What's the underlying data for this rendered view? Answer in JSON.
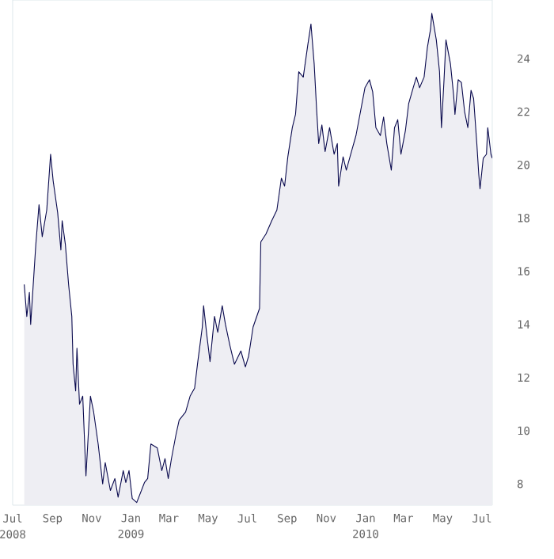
{
  "chart_data": {
    "type": "area",
    "xlim": [
      "2008-07-01",
      "2010-07-17"
    ],
    "ylim": [
      7.2,
      26.2
    ],
    "yticks": [
      8,
      10,
      12,
      14,
      16,
      18,
      20,
      22,
      24
    ],
    "xticks": [
      {
        "value": "2008-07-01",
        "label": "Jul 2008"
      },
      {
        "value": "2008-09-01",
        "label": "Sep"
      },
      {
        "value": "2008-11-01",
        "label": "Nov"
      },
      {
        "value": "2009-01-01",
        "label": "Jan 2009"
      },
      {
        "value": "2009-03-01",
        "label": "Mar"
      },
      {
        "value": "2009-05-01",
        "label": "May"
      },
      {
        "value": "2009-07-01",
        "label": "Jul"
      },
      {
        "value": "2009-09-01",
        "label": "Sep"
      },
      {
        "value": "2009-11-01",
        "label": "Nov"
      },
      {
        "value": "2010-01-01",
        "label": "Jan 2010"
      },
      {
        "value": "2010-03-01",
        "label": "Mar"
      },
      {
        "value": "2010-05-01",
        "label": "May"
      },
      {
        "value": "2010-07-01",
        "label": "Jul"
      }
    ],
    "grid": false,
    "x": [
      "2008-07-19",
      "2008-07-23",
      "2008-07-27",
      "2008-07-29",
      "2008-08-06",
      "2008-08-11",
      "2008-08-16",
      "2008-08-23",
      "2008-08-29",
      "2008-09-02",
      "2008-09-09",
      "2008-09-14",
      "2008-09-16",
      "2008-09-21",
      "2008-09-26",
      "2008-10-01",
      "2008-10-03",
      "2008-10-07",
      "2008-10-09",
      "2008-10-13",
      "2008-10-18",
      "2008-10-23",
      "2008-10-30",
      "2008-11-04",
      "2008-11-11",
      "2008-11-18",
      "2008-11-22",
      "2008-11-30",
      "2008-12-07",
      "2008-12-12",
      "2008-12-20",
      "2008-12-24",
      "2008-12-29",
      "2009-01-03",
      "2009-01-10",
      "2009-01-22",
      "2009-01-27",
      "2009-02-01",
      "2009-02-11",
      "2009-02-18",
      "2009-02-23",
      "2009-02-28",
      "2009-03-05",
      "2009-03-12",
      "2009-03-17",
      "2009-03-27",
      "2009-04-03",
      "2009-04-10",
      "2009-04-15",
      "2009-04-22",
      "2009-04-24",
      "2009-04-29",
      "2009-05-04",
      "2009-05-11",
      "2009-05-16",
      "2009-05-23",
      "2009-05-28",
      "2009-06-04",
      "2009-06-11",
      "2009-06-21",
      "2009-06-28",
      "2009-07-03",
      "2009-07-10",
      "2009-07-20",
      "2009-07-22",
      "2009-07-30",
      "2009-08-08",
      "2009-08-16",
      "2009-08-23",
      "2009-08-28",
      "2009-09-02",
      "2009-09-09",
      "2009-09-14",
      "2009-09-19",
      "2009-09-26",
      "2009-10-03",
      "2009-10-08",
      "2009-10-13",
      "2009-10-17",
      "2009-10-20",
      "2009-10-25",
      "2009-10-30",
      "2009-11-06",
      "2009-11-13",
      "2009-11-18",
      "2009-11-20",
      "2009-11-27",
      "2009-12-02",
      "2009-12-10",
      "2009-12-17",
      "2009-12-24",
      "2009-12-31",
      "2010-01-07",
      "2010-01-12",
      "2010-01-17",
      "2010-01-24",
      "2010-01-29",
      "2010-02-03",
      "2010-02-10",
      "2010-02-15",
      "2010-02-20",
      "2010-02-25",
      "2010-03-04",
      "2010-03-09",
      "2010-03-16",
      "2010-03-21",
      "2010-03-26",
      "2010-04-02",
      "2010-04-07",
      "2010-04-12",
      "2010-04-14",
      "2010-04-21",
      "2010-04-26",
      "2010-04-29",
      "2010-05-03",
      "2010-05-06",
      "2010-05-13",
      "2010-05-18",
      "2010-05-20",
      "2010-05-25",
      "2010-05-30",
      "2010-06-04",
      "2010-06-09",
      "2010-06-14",
      "2010-06-18",
      "2010-06-23",
      "2010-06-26",
      "2010-06-28",
      "2010-07-03",
      "2010-07-08",
      "2010-07-10",
      "2010-07-15",
      "2010-07-17"
    ],
    "series": [
      {
        "color": "#0a0a4e",
        "values": [
          15.5,
          14.3,
          15.2,
          14.0,
          17.0,
          18.5,
          17.3,
          18.3,
          20.4,
          19.4,
          18.2,
          16.8,
          17.9,
          17.0,
          15.5,
          14.3,
          12.5,
          11.5,
          13.1,
          11.0,
          11.3,
          8.3,
          11.3,
          10.7,
          9.5,
          8.0,
          8.8,
          7.75,
          8.2,
          7.5,
          8.5,
          8.05,
          8.5,
          7.45,
          7.3,
          8.05,
          8.2,
          9.5,
          9.35,
          8.5,
          8.95,
          8.2,
          8.95,
          9.85,
          10.4,
          10.7,
          11.3,
          11.6,
          12.6,
          13.9,
          14.7,
          13.6,
          12.6,
          14.3,
          13.7,
          14.7,
          14.0,
          13.2,
          12.5,
          13.0,
          12.4,
          12.8,
          13.9,
          14.6,
          17.1,
          17.4,
          17.9,
          18.3,
          19.5,
          19.2,
          20.3,
          21.4,
          21.9,
          23.5,
          23.3,
          24.5,
          25.3,
          23.8,
          22.0,
          20.8,
          21.5,
          20.5,
          21.4,
          20.4,
          20.8,
          19.2,
          20.3,
          19.8,
          20.5,
          21.1,
          22.0,
          22.9,
          23.2,
          22.75,
          21.4,
          21.1,
          21.8,
          20.8,
          19.8,
          21.4,
          21.7,
          20.4,
          21.3,
          22.3,
          22.9,
          23.3,
          22.9,
          23.3,
          24.4,
          25.1,
          25.7,
          24.7,
          23.5,
          21.4,
          23.2,
          24.7,
          23.8,
          22.6,
          21.9,
          23.2,
          23.1,
          22.0,
          21.4,
          22.8,
          22.5,
          20.8,
          19.65,
          19.1,
          20.25,
          20.4,
          21.4,
          20.4,
          20.25
        ]
      }
    ]
  }
}
